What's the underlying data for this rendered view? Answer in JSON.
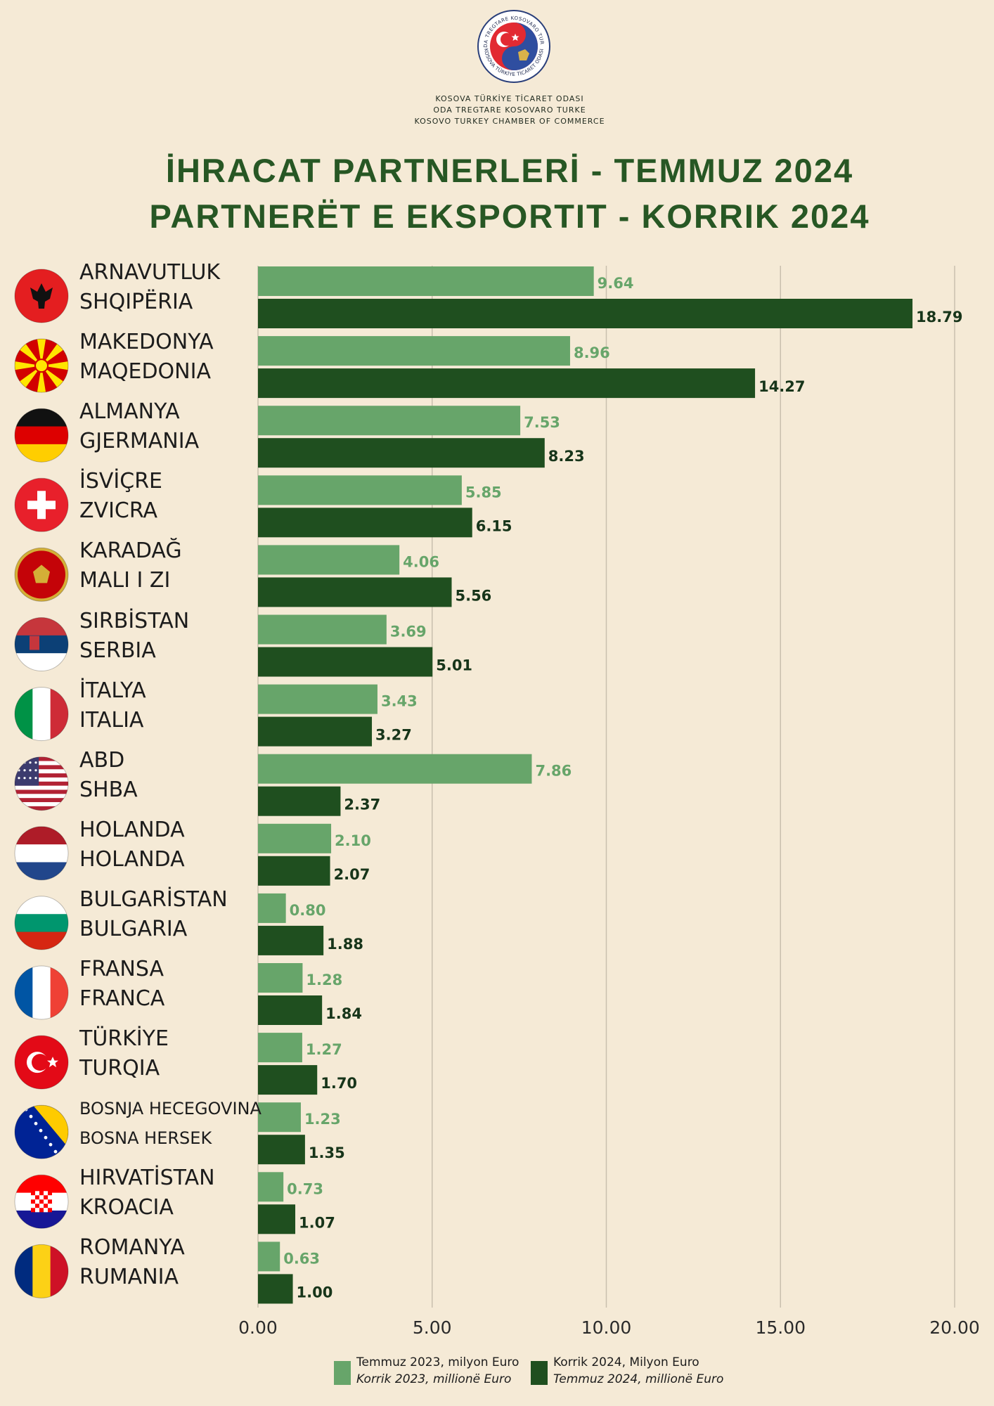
{
  "header": {
    "org_lines": [
      "KOSOVA TÜRKİYE TİCARET ODASI",
      "ODA TREGTARE KOSOVARO TURKE",
      "KOSOVO TURKEY CHAMBER OF COMMERCE"
    ],
    "logo_ring_top": "ODA TREGTARE KOSOVARO TURKE",
    "logo_ring_bottom": "KOSOVA TÜRKİYE TİCARET ODASI",
    "title_line1": "İHRACAT PARTNERLERİ - TEMMUZ 2024",
    "title_line2": "PARTNERËT E EKSPORTIT - KORRIK 2024"
  },
  "colors": {
    "background": "#f5ead6",
    "series_2023": "#67a56a",
    "series_2024": "#1f4f1f",
    "title": "#275724"
  },
  "chart_data": {
    "type": "bar",
    "orientation": "horizontal",
    "categories": [
      {
        "line1": "ARNAVUTLUK",
        "line2": "SHQIPËRIA",
        "flag": "albania-flag-icon"
      },
      {
        "line1": "MAKEDONYA",
        "line2": "MAQEDONIA",
        "flag": "north-macedonia-flag-icon"
      },
      {
        "line1": "ALMANYA",
        "line2": "GJERMANIA",
        "flag": "germany-flag-icon"
      },
      {
        "line1": "İSVİÇRE",
        "line2": "ZVICRA",
        "flag": "switzerland-flag-icon"
      },
      {
        "line1": "KARADAĞ",
        "line2": "MALI I ZI",
        "flag": "montenegro-flag-icon"
      },
      {
        "line1": "SIRBİSTAN",
        "line2": "SERBIA",
        "flag": "serbia-flag-icon"
      },
      {
        "line1": "İTALYA",
        "line2": "ITALIA",
        "flag": "italy-flag-icon"
      },
      {
        "line1": "ABD",
        "line2": "SHBA",
        "flag": "usa-flag-icon"
      },
      {
        "line1": "HOLANDA",
        "line2": "HOLANDA",
        "flag": "netherlands-flag-icon"
      },
      {
        "line1": "BULGARİSTAN",
        "line2": "BULGARIA",
        "flag": "bulgaria-flag-icon"
      },
      {
        "line1": "FRANSA",
        "line2": "FRANCA",
        "flag": "france-flag-icon"
      },
      {
        "line1": "TÜRKİYE",
        "line2": "TURQIA",
        "flag": "turkey-flag-icon"
      },
      {
        "line1": "BOSNJA HECEGOVINA",
        "line2": "BOSNA HERSEK",
        "flag": "bosnia-flag-icon"
      },
      {
        "line1": "HIRVATİSTAN",
        "line2": "KROACIA",
        "flag": "croatia-flag-icon"
      },
      {
        "line1": "ROMANYA",
        "line2": "RUMANIA",
        "flag": "romania-flag-icon"
      }
    ],
    "series": [
      {
        "values": [
          9.64,
          8.96,
          7.53,
          5.85,
          4.06,
          3.69,
          3.43,
          7.86,
          2.1,
          0.8,
          1.28,
          1.27,
          1.23,
          0.73,
          0.63
        ],
        "labels": [
          "9.64",
          "8.96",
          "7.53",
          "5.85",
          "4.06",
          "3.69",
          "3.43",
          "7.86",
          "2.10",
          "0.80",
          "1.28",
          "1.27",
          "1.23",
          "0.73",
          "0.63"
        ]
      },
      {
        "values": [
          18.79,
          14.27,
          8.23,
          6.15,
          5.56,
          5.01,
          3.27,
          2.37,
          2.07,
          1.88,
          1.84,
          1.7,
          1.35,
          1.07,
          1.0
        ],
        "labels": [
          "18.79",
          "14.27",
          "8.23",
          "6.15",
          "5.56",
          "5.01",
          "3.27",
          "2.37",
          "2.07",
          "1.88",
          "1.84",
          "1.70",
          "1.35",
          "1.07",
          "1.00"
        ]
      }
    ],
    "xlim": [
      0,
      20
    ],
    "xticks": [
      0,
      5,
      10,
      15,
      20
    ],
    "xtick_labels": [
      "0.00",
      "5.00",
      "10.00",
      "15.00",
      "20.00"
    ],
    "grid": "vertical",
    "legend_position": "bottom",
    "legend": [
      {
        "line1": "Temmuz  2023, milyon Euro",
        "line2": "Korrik 2023, millionë Euro"
      },
      {
        "line1": "Korrik 2024, Milyon Euro",
        "line2": "Temmuz 2024, millionë Euro"
      }
    ]
  }
}
